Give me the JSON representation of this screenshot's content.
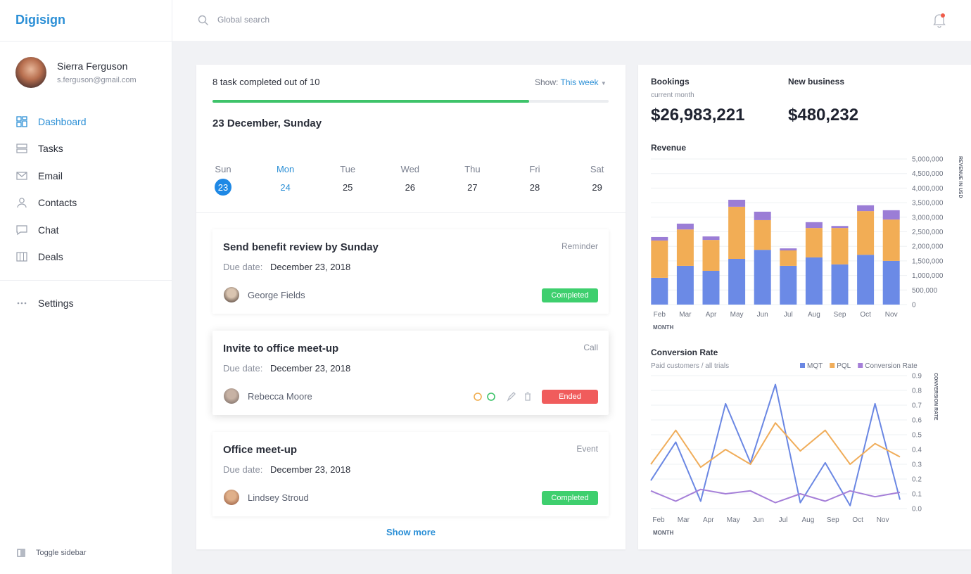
{
  "sidebar": {
    "brand": "Digisign",
    "user": {
      "name": "Sierra Ferguson",
      "email": "s.ferguson@gmail.com"
    },
    "nav": [
      "Dashboard",
      "Tasks",
      "Email",
      "Contacts",
      "Chat",
      "Deals"
    ],
    "settings": "Settings",
    "toggle": "Toggle sidebar"
  },
  "header": {
    "search_placeholder": "Global search"
  },
  "tasks": {
    "progress_label": "8 task completed out of 10",
    "progress": 80,
    "show_label": "Show:",
    "show_value": "This week",
    "date": "23 December, Sunday",
    "week": [
      {
        "day": "Sun",
        "date": 23
      },
      {
        "day": "Mon",
        "date": 24
      },
      {
        "day": "Tue",
        "date": 25
      },
      {
        "day": "Wed",
        "date": 26
      },
      {
        "day": "Thu",
        "date": 27
      },
      {
        "day": "Fri",
        "date": 28
      },
      {
        "day": "Sat",
        "date": 29
      }
    ],
    "items": [
      {
        "title": "Send benefit review by Sunday",
        "type": "Reminder",
        "due_label": "Due date:",
        "due": "December 23, 2018",
        "assignee": "George Fields",
        "status": "Completed"
      },
      {
        "title": "Invite to office meet-up",
        "type": "Call",
        "due_label": "Due date:",
        "due": "December 23, 2018",
        "assignee": "Rebecca Moore",
        "status": "Ended"
      },
      {
        "title": "Office meet-up",
        "type": "Event",
        "due_label": "Due date:",
        "due": "December 23, 2018",
        "assignee": "Lindsey Stroud",
        "status": "Completed"
      }
    ],
    "show_more": "Show more"
  },
  "stats": [
    {
      "label": "Bookings",
      "sublabel": "current month",
      "value": "$26,983,221"
    },
    {
      "label": "New business",
      "value": "$480,232"
    }
  ],
  "chart_data": [
    {
      "type": "bar",
      "stacked": true,
      "title": "Revenue",
      "x_label": "MONTH",
      "y_label": "REVENUE IN USD",
      "categories": [
        "Feb",
        "Mar",
        "Apr",
        "May",
        "Jun",
        "Jul",
        "Aug",
        "Sep",
        "Oct",
        "Nov"
      ],
      "series": [
        {
          "color": "#6b8ae6",
          "values": [
            920000,
            1330000,
            1160000,
            1570000,
            1880000,
            1330000,
            1620000,
            1380000,
            1710000,
            1500000
          ]
        },
        {
          "color": "#f2ad55",
          "values": [
            1280000,
            1250000,
            1060000,
            1790000,
            1020000,
            530000,
            1010000,
            1250000,
            1500000,
            1420000
          ]
        },
        {
          "color": "#9b7dd6",
          "values": [
            120000,
            200000,
            120000,
            240000,
            290000,
            70000,
            200000,
            70000,
            200000,
            320000
          ]
        }
      ],
      "ylim": [
        0,
        5000000
      ],
      "yticks": [
        0,
        {
          "value": 500000,
          "label": "500,000"
        },
        {
          "value": 1000000,
          "label": "1,000,000"
        },
        {
          "value": 1500000,
          "label": "1,500,000"
        },
        {
          "value": 2000000,
          "label": "2,000,000"
        },
        {
          "value": 2500000,
          "label": "2,500,000"
        },
        {
          "value": 3000000,
          "label": "3,000,000"
        },
        {
          "value": 3500000,
          "label": "3,500,000"
        },
        {
          "value": 4000000,
          "label": "4,000,000"
        },
        {
          "value": 4500000,
          "label": "4,500,000"
        },
        {
          "value": 5000000,
          "label": "5,000,000"
        }
      ],
      "grid": true
    },
    {
      "type": "line",
      "title": "Conversion Rate",
      "subtitle": "Paid customers / all trials",
      "x_label": "MONTH",
      "y_label": "CONVERSION RATE",
      "categories": [
        "Feb",
        "Mar",
        "Apr",
        "May",
        "Jun",
        "Jul",
        "Aug",
        "Sep",
        "Oct",
        "Nov",
        null
      ],
      "series": [
        {
          "name": "MQT",
          "color": "#6a87e3",
          "values": [
            0.19,
            0.45,
            0.05,
            0.71,
            0.31,
            0.84,
            0.04,
            0.31,
            0.02,
            0.71,
            0.06
          ]
        },
        {
          "name": "PQL",
          "color": "#f0ad5a",
          "values": [
            0.3,
            0.53,
            0.28,
            0.4,
            0.3,
            0.58,
            0.39,
            0.53,
            0.3,
            0.44,
            0.35
          ]
        },
        {
          "name": "Conversion Rate",
          "color": "#a57fd8",
          "values": [
            0.12,
            0.05,
            0.13,
            0.1,
            0.12,
            0.04,
            0.1,
            0.05,
            0.12,
            0.08,
            0.11
          ]
        }
      ],
      "ylim": [
        0,
        0.9
      ],
      "yticks": [
        {
          "value": 0,
          "label": "0.0"
        },
        0.1,
        0.2,
        0.3,
        0.4,
        0.5,
        0.6,
        0.7,
        0.8,
        0.9
      ],
      "grid": true,
      "legend": "top-right"
    }
  ]
}
